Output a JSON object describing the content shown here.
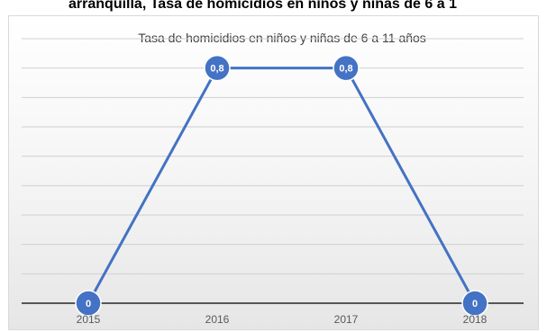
{
  "page": {
    "heading": "arranquilla, Tasa de homicidios en niños y niñas de 6 a 1"
  },
  "chart_data": {
    "type": "line",
    "title": "Tasa de homicidios  en niños y niñas de 6 a 11 años",
    "categories": [
      "2015",
      "2016",
      "2017",
      "2018"
    ],
    "series": [
      {
        "values": [
          0,
          0.8,
          0.8,
          0
        ],
        "data_labels": [
          "0",
          "0,8",
          "0,8",
          "0"
        ]
      }
    ],
    "ylim": [
      0,
      0.9
    ],
    "gridlines": true,
    "legend": "none",
    "line_color": "#4472c4",
    "marker_color": "#4472c4"
  }
}
